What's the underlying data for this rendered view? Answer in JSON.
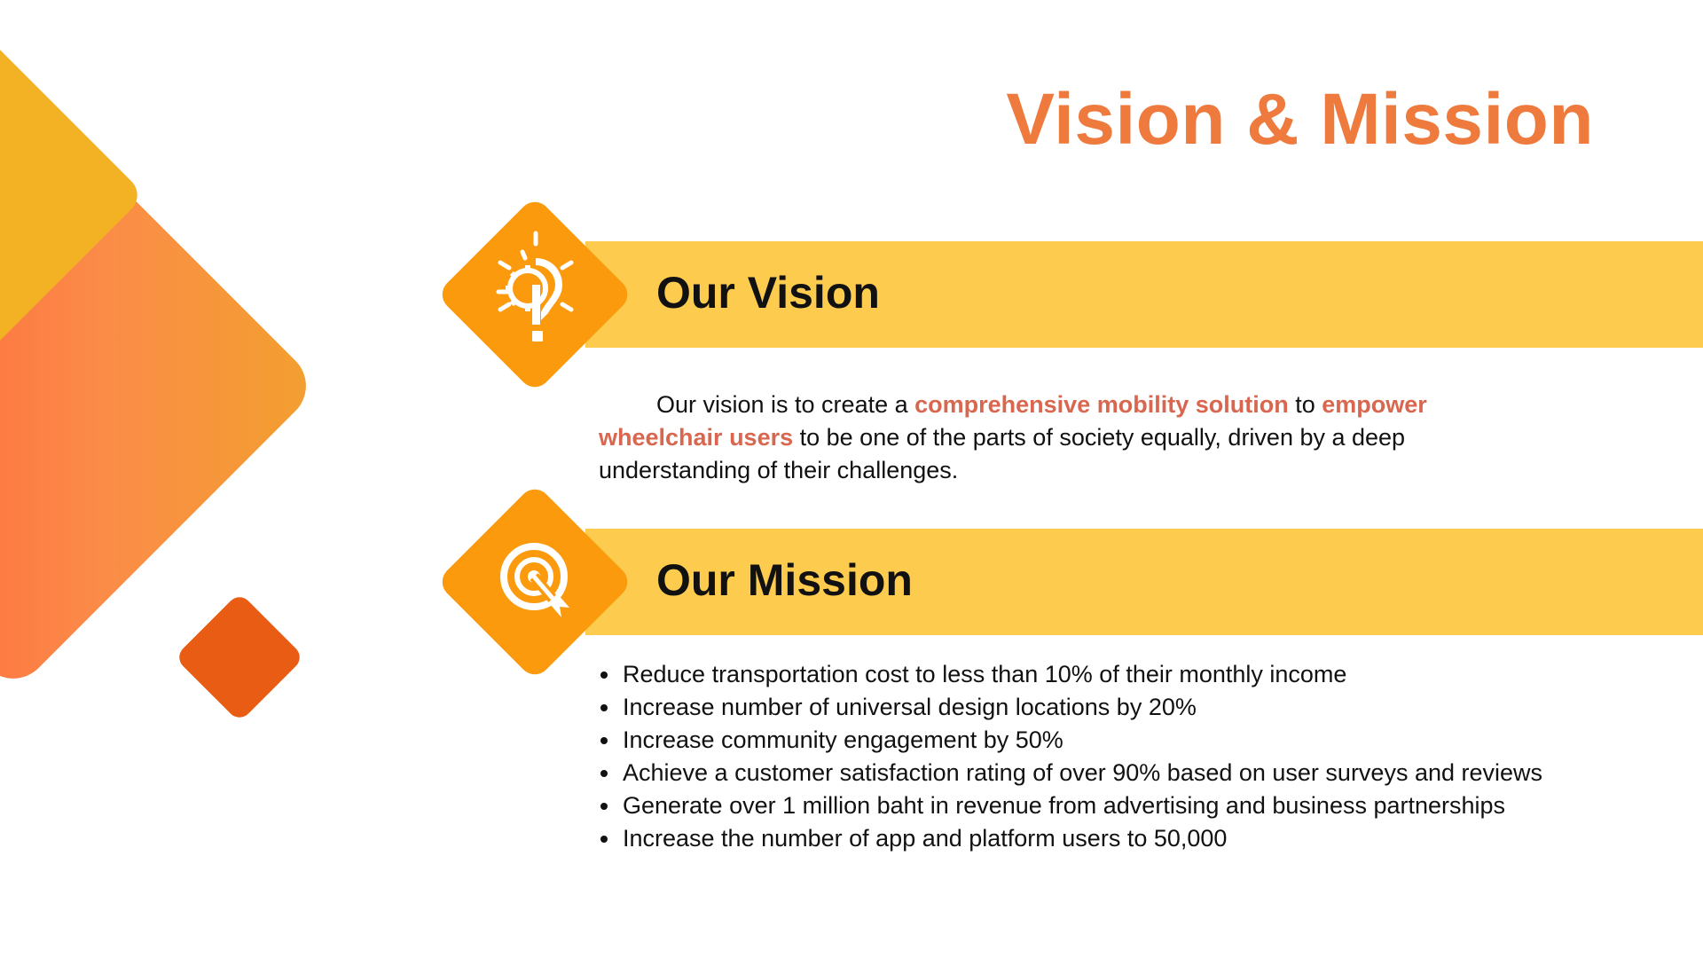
{
  "slide": {
    "title": "Vision & Mission",
    "colors": {
      "title": "#ef7a3d",
      "band": "#fdcc4e",
      "icon_diamond": "#fb9a0c",
      "highlight": "#d9674f",
      "accent_dark": "#e85c14"
    }
  },
  "vision": {
    "heading": "Our Vision",
    "icon": "lightbulb-icon",
    "text": {
      "part1": "Our vision is to create a ",
      "highlight1": "comprehensive mobility solution",
      "part2": " to ",
      "highlight2": "empower wheelchair users",
      "part3": " to be one of the parts of society equally, driven by a deep understanding of their challenges."
    }
  },
  "mission": {
    "heading": "Our Mission",
    "icon": "target-icon",
    "items": [
      "Reduce transportation cost to less than 10% of their monthly income",
      "Increase number of universal design  locations by 20%",
      "Increase community engagement by 50%",
      "Achieve a customer satisfaction rating of over 90% based on user surveys and reviews",
      "Generate over 1 million baht in revenue from advertising and business partnerships",
      "Increase the number of app and platform users to 50,000"
    ]
  }
}
